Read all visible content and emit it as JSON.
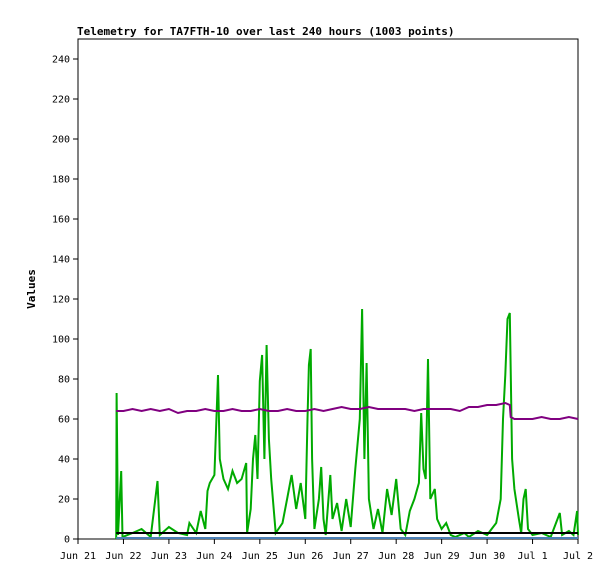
{
  "chart_data": {
    "type": "line",
    "title": "Telemetry for TA7FTH-10 over last 240 hours (1003 points)",
    "xlabel": "",
    "ylabel": "Values",
    "ylim": [
      0,
      250
    ],
    "yticks": [
      0,
      20,
      40,
      60,
      80,
      100,
      120,
      140,
      160,
      180,
      200,
      220,
      240
    ],
    "xlim": [
      0,
      11
    ],
    "xtick_labels": [
      "Jun 21",
      "Jun 22",
      "Jun 23",
      "Jun 24",
      "Jun 25",
      "Jun 26",
      "Jun 27",
      "Jun 28",
      "Jun 29",
      "Jun 30",
      "Jul 1",
      "Jul 2"
    ],
    "x_unit": "days since Jun 21",
    "grid": false,
    "legend": "none",
    "series": [
      {
        "color": "#00aa00",
        "points": [
          [
            0.84,
            0
          ],
          [
            0.85,
            73
          ],
          [
            0.88,
            2
          ],
          [
            0.95,
            34
          ],
          [
            0.98,
            1
          ],
          [
            1.2,
            3
          ],
          [
            1.4,
            5
          ],
          [
            1.6,
            1
          ],
          [
            1.75,
            29
          ],
          [
            1.8,
            2
          ],
          [
            2.0,
            6
          ],
          [
            2.2,
            3
          ],
          [
            2.4,
            2
          ],
          [
            2.45,
            8
          ],
          [
            2.6,
            3
          ],
          [
            2.7,
            14
          ],
          [
            2.8,
            5
          ],
          [
            2.85,
            24
          ],
          [
            2.9,
            28
          ],
          [
            3.0,
            32
          ],
          [
            3.08,
            82
          ],
          [
            3.12,
            40
          ],
          [
            3.2,
            30
          ],
          [
            3.3,
            25
          ],
          [
            3.4,
            34
          ],
          [
            3.5,
            28
          ],
          [
            3.6,
            30
          ],
          [
            3.7,
            38
          ],
          [
            3.72,
            3
          ],
          [
            3.8,
            15
          ],
          [
            3.85,
            40
          ],
          [
            3.9,
            52
          ],
          [
            3.95,
            30
          ],
          [
            4.0,
            79
          ],
          [
            4.05,
            92
          ],
          [
            4.1,
            40
          ],
          [
            4.15,
            97
          ],
          [
            4.2,
            50
          ],
          [
            4.25,
            30
          ],
          [
            4.35,
            3
          ],
          [
            4.5,
            8
          ],
          [
            4.6,
            20
          ],
          [
            4.7,
            32
          ],
          [
            4.8,
            15
          ],
          [
            4.9,
            28
          ],
          [
            5.0,
            10
          ],
          [
            5.05,
            60
          ],
          [
            5.08,
            87
          ],
          [
            5.12,
            95
          ],
          [
            5.15,
            40
          ],
          [
            5.2,
            5
          ],
          [
            5.3,
            20
          ],
          [
            5.35,
            36
          ],
          [
            5.4,
            10
          ],
          [
            5.45,
            2
          ],
          [
            5.55,
            32
          ],
          [
            5.6,
            10
          ],
          [
            5.7,
            18
          ],
          [
            5.8,
            4
          ],
          [
            5.9,
            20
          ],
          [
            6.0,
            6
          ],
          [
            6.1,
            35
          ],
          [
            6.2,
            60
          ],
          [
            6.25,
            115
          ],
          [
            6.3,
            40
          ],
          [
            6.35,
            88
          ],
          [
            6.4,
            20
          ],
          [
            6.5,
            5
          ],
          [
            6.6,
            15
          ],
          [
            6.7,
            3
          ],
          [
            6.8,
            25
          ],
          [
            6.9,
            12
          ],
          [
            7.0,
            30
          ],
          [
            7.1,
            5
          ],
          [
            7.2,
            2
          ],
          [
            7.3,
            14
          ],
          [
            7.4,
            20
          ],
          [
            7.5,
            28
          ],
          [
            7.55,
            63
          ],
          [
            7.6,
            35
          ],
          [
            7.65,
            30
          ],
          [
            7.7,
            90
          ],
          [
            7.75,
            20
          ],
          [
            7.85,
            25
          ],
          [
            7.9,
            10
          ],
          [
            8.0,
            5
          ],
          [
            8.1,
            8
          ],
          [
            8.2,
            2
          ],
          [
            8.3,
            1
          ],
          [
            8.5,
            3
          ],
          [
            8.6,
            1
          ],
          [
            8.8,
            4
          ],
          [
            9.0,
            2
          ],
          [
            9.1,
            5
          ],
          [
            9.2,
            8
          ],
          [
            9.3,
            20
          ],
          [
            9.35,
            60
          ],
          [
            9.4,
            82
          ],
          [
            9.45,
            110
          ],
          [
            9.5,
            113
          ],
          [
            9.55,
            40
          ],
          [
            9.6,
            25
          ],
          [
            9.7,
            10
          ],
          [
            9.75,
            3
          ],
          [
            9.8,
            20
          ],
          [
            9.85,
            25
          ],
          [
            9.9,
            5
          ],
          [
            10.0,
            2
          ],
          [
            10.2,
            3
          ],
          [
            10.4,
            1
          ],
          [
            10.6,
            13
          ],
          [
            10.65,
            2
          ],
          [
            10.8,
            4
          ],
          [
            10.9,
            2
          ],
          [
            10.98,
            14
          ],
          [
            11.0,
            2
          ]
        ]
      },
      {
        "color": "#800080",
        "points": [
          [
            0.84,
            64
          ],
          [
            1.0,
            64
          ],
          [
            1.2,
            65
          ],
          [
            1.4,
            64
          ],
          [
            1.6,
            65
          ],
          [
            1.8,
            64
          ],
          [
            2.0,
            65
          ],
          [
            2.2,
            63
          ],
          [
            2.4,
            64
          ],
          [
            2.6,
            64
          ],
          [
            2.8,
            65
          ],
          [
            3.0,
            64
          ],
          [
            3.2,
            64
          ],
          [
            3.4,
            65
          ],
          [
            3.6,
            64
          ],
          [
            3.8,
            64
          ],
          [
            4.0,
            65
          ],
          [
            4.2,
            64
          ],
          [
            4.4,
            64
          ],
          [
            4.6,
            65
          ],
          [
            4.8,
            64
          ],
          [
            5.0,
            64
          ],
          [
            5.2,
            65
          ],
          [
            5.4,
            64
          ],
          [
            5.6,
            65
          ],
          [
            5.8,
            66
          ],
          [
            6.0,
            65
          ],
          [
            6.2,
            65
          ],
          [
            6.4,
            66
          ],
          [
            6.6,
            65
          ],
          [
            6.8,
            65
          ],
          [
            7.0,
            65
          ],
          [
            7.2,
            65
          ],
          [
            7.4,
            64
          ],
          [
            7.6,
            65
          ],
          [
            7.8,
            65
          ],
          [
            8.0,
            65
          ],
          [
            8.2,
            65
          ],
          [
            8.4,
            64
          ],
          [
            8.6,
            66
          ],
          [
            8.8,
            66
          ],
          [
            9.0,
            67
          ],
          [
            9.2,
            67
          ],
          [
            9.4,
            68
          ],
          [
            9.5,
            67
          ],
          [
            9.52,
            61
          ],
          [
            9.6,
            60
          ],
          [
            9.8,
            60
          ],
          [
            10.0,
            60
          ],
          [
            10.2,
            61
          ],
          [
            10.4,
            60
          ],
          [
            10.6,
            60
          ],
          [
            10.8,
            61
          ],
          [
            11.0,
            60
          ]
        ]
      },
      {
        "color": "#000000",
        "points": [
          [
            0.84,
            3
          ],
          [
            5.0,
            3
          ],
          [
            11.0,
            3
          ]
        ]
      },
      {
        "color": "#4a7fb5",
        "points": [
          [
            0.84,
            0.5
          ],
          [
            5.0,
            0.5
          ],
          [
            11.0,
            0.5
          ]
        ]
      }
    ]
  }
}
